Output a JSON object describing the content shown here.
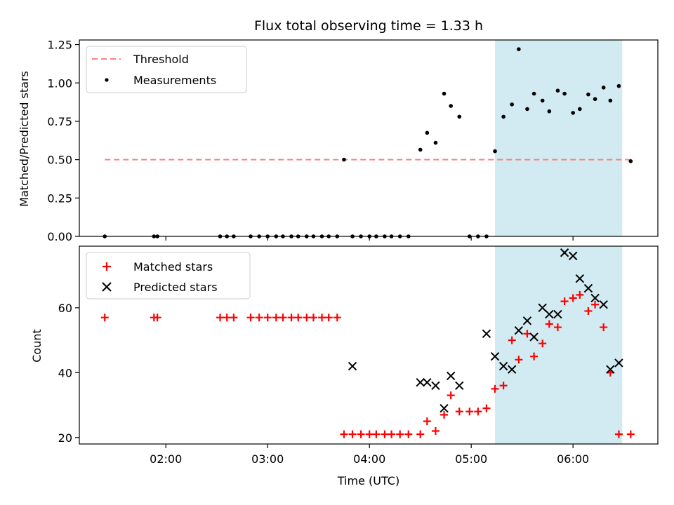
{
  "chart_data": [
    {
      "type": "scatter",
      "title": "Flux total observing time = 1.33 h",
      "xlabel": "",
      "ylabel": "Matched/Predicted stars",
      "xlim": [
        "01:09",
        "06:50"
      ],
      "ylim": [
        0,
        1.28
      ],
      "y_ticks": [
        "0.00",
        "0.25",
        "0.50",
        "0.75",
        "1.00",
        "1.25"
      ],
      "x_ticks": [
        "02:00",
        "03:00",
        "04:00",
        "05:00",
        "06:00"
      ],
      "x_tick_labels_shown": false,
      "highlight_span": {
        "from": "05:14",
        "to": "06:29",
        "color": "#add8e6"
      },
      "legend": {
        "position": "upper-left",
        "entries": [
          "Threshold",
          "Measurements"
        ]
      },
      "series": [
        {
          "name": "Threshold",
          "style": "dashed-line",
          "color": "#ff8080",
          "x": [
            "01:24",
            "06:34"
          ],
          "y": [
            0.5,
            0.5
          ]
        },
        {
          "name": "Measurements",
          "style": "dot",
          "color": "#000000",
          "x": [
            "01:24",
            "01:53",
            "01:55",
            "02:32",
            "02:36",
            "02:40",
            "02:50",
            "02:55",
            "03:00",
            "03:05",
            "03:09",
            "03:14",
            "03:18",
            "03:23",
            "03:27",
            "03:32",
            "03:36",
            "03:41",
            "03:45",
            "03:50",
            "03:55",
            "04:00",
            "04:04",
            "04:09",
            "04:13",
            "04:18",
            "04:23",
            "04:30",
            "04:34",
            "04:39",
            "04:44",
            "04:48",
            "04:53",
            "04:59",
            "05:04",
            "05:09",
            "05:14",
            "05:19",
            "05:24",
            "05:28",
            "05:33",
            "05:37",
            "05:42",
            "05:46",
            "05:51",
            "05:55",
            "06:00",
            "06:04",
            "06:09",
            "06:13",
            "06:18",
            "06:22",
            "06:27",
            "06:34"
          ],
          "y": [
            0,
            0,
            0,
            0,
            0,
            0,
            0,
            0,
            0,
            0,
            0,
            0,
            0,
            0,
            0,
            0,
            0,
            0,
            0.5,
            0,
            0,
            0,
            0,
            0,
            0,
            0,
            0,
            0.565,
            0.675,
            0.61,
            0.93,
            0.85,
            0.78,
            0,
            0,
            0,
            0.555,
            0.78,
            0.86,
            1.22,
            0.83,
            0.93,
            0.885,
            0.815,
            0.95,
            0.93,
            0.805,
            0.83,
            0.925,
            0.895,
            0.97,
            0.885,
            0.98,
            0.49
          ]
        }
      ]
    },
    {
      "type": "scatter",
      "title": "",
      "xlabel": "Time (UTC)",
      "ylabel": "Count",
      "xlim": [
        "01:09",
        "06:50"
      ],
      "ylim": [
        18,
        79
      ],
      "y_ticks": [
        "20",
        "40",
        "60"
      ],
      "x_ticks": [
        "02:00",
        "03:00",
        "04:00",
        "05:00",
        "06:00"
      ],
      "highlight_span": {
        "from": "05:14",
        "to": "06:29",
        "color": "#add8e6"
      },
      "legend": {
        "position": "upper-left",
        "entries": [
          "Matched stars",
          "Predicted stars"
        ]
      },
      "series": [
        {
          "name": "Matched stars",
          "marker": "+",
          "color": "#ff0000",
          "x": [
            "01:24",
            "01:53",
            "01:55",
            "02:32",
            "02:36",
            "02:40",
            "02:50",
            "02:55",
            "03:00",
            "03:05",
            "03:09",
            "03:14",
            "03:18",
            "03:23",
            "03:27",
            "03:32",
            "03:36",
            "03:41",
            "03:45",
            "03:50",
            "03:55",
            "04:00",
            "04:04",
            "04:09",
            "04:13",
            "04:18",
            "04:23",
            "04:30",
            "04:34",
            "04:39",
            "04:44",
            "04:48",
            "04:53",
            "04:59",
            "05:04",
            "05:09",
            "05:14",
            "05:19",
            "05:24",
            "05:28",
            "05:33",
            "05:37",
            "05:42",
            "05:46",
            "05:51",
            "05:55",
            "06:00",
            "06:04",
            "06:09",
            "06:13",
            "06:18",
            "06:22",
            "06:27",
            "06:34"
          ],
          "y": [
            57,
            57,
            57,
            57,
            57,
            57,
            57,
            57,
            57,
            57,
            57,
            57,
            57,
            57,
            57,
            57,
            57,
            57,
            21,
            21,
            21,
            21,
            21,
            21,
            21,
            21,
            21,
            21,
            25,
            22,
            27,
            33,
            28,
            28,
            28,
            29,
            35,
            36,
            50,
            44,
            52,
            45,
            49,
            55,
            54,
            62,
            63,
            64,
            59,
            61,
            54,
            40,
            21,
            21
          ]
        },
        {
          "name": "Predicted stars",
          "marker": "x",
          "color": "#000000",
          "x": [
            "03:50",
            "04:30",
            "04:34",
            "04:39",
            "04:44",
            "04:48",
            "04:53",
            "05:09",
            "05:14",
            "05:19",
            "05:24",
            "05:28",
            "05:33",
            "05:37",
            "05:42",
            "05:46",
            "05:51",
            "05:55",
            "06:00",
            "06:04",
            "06:09",
            "06:13",
            "06:18",
            "06:22",
            "06:27"
          ],
          "y": [
            42,
            37,
            37,
            36,
            29,
            39,
            36,
            52,
            45,
            42,
            41,
            53,
            56,
            51,
            60,
            58,
            58,
            77,
            76,
            69,
            66,
            63,
            61,
            41,
            43
          ]
        }
      ]
    }
  ]
}
